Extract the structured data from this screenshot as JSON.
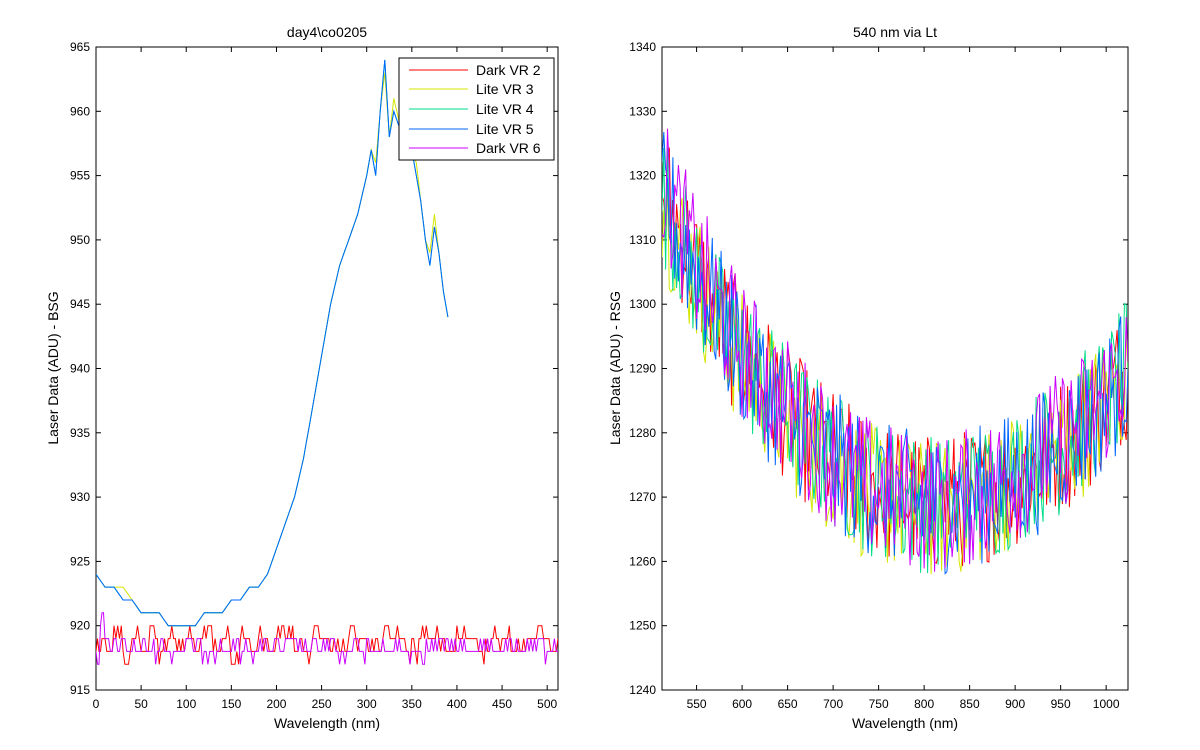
{
  "chart_data": [
    {
      "type": "line",
      "title": "day4\\co0205",
      "xlabel": "Wavelength (nm)",
      "ylabel": "Laser Data (ADU) - BSG",
      "xlim": [
        0,
        512
      ],
      "ylim": [
        915,
        965
      ],
      "xticks": [
        0,
        50,
        100,
        150,
        200,
        250,
        300,
        350,
        400,
        450,
        500
      ],
      "yticks": [
        915,
        920,
        925,
        930,
        935,
        940,
        945,
        950,
        955,
        960,
        965
      ],
      "grid": false,
      "legend": "top-right",
      "series": [
        {
          "name": "Dark VR 2",
          "color": "#ff0000",
          "x": [
            0,
            5,
            10,
            20,
            30,
            40,
            50,
            60,
            70,
            80,
            90,
            100,
            110,
            120,
            130,
            140,
            150,
            160,
            170,
            180,
            190,
            200,
            220,
            240,
            260,
            280,
            300,
            320,
            340,
            360,
            380,
            400,
            420,
            440,
            460,
            480,
            500,
            512
          ],
          "y": [
            918,
            919,
            918,
            919,
            917,
            919,
            918,
            919,
            918,
            919,
            918,
            919,
            918,
            919,
            918,
            919,
            917,
            919,
            918,
            919,
            918,
            919,
            918,
            919,
            918,
            919,
            918,
            919,
            918,
            919,
            918,
            919,
            918,
            919,
            918,
            919,
            918,
            919
          ]
        },
        {
          "name": "Lite VR 3",
          "color": "#d4e600",
          "x": [
            0,
            10,
            20,
            30,
            40,
            50,
            60,
            70,
            80,
            90,
            100,
            110,
            120,
            130,
            140,
            150,
            160,
            170,
            180,
            190,
            200,
            210,
            220,
            230,
            240,
            250,
            260,
            270,
            280,
            290,
            300,
            305,
            310,
            315,
            320,
            325,
            330,
            340,
            345,
            350,
            355,
            360,
            365,
            370,
            375,
            380,
            385,
            390
          ],
          "y": [
            924,
            923,
            923,
            923,
            922,
            921,
            921,
            921,
            920,
            920,
            920,
            920,
            921,
            921,
            921,
            922,
            922,
            923,
            923,
            924,
            926,
            928,
            930,
            933,
            937,
            941,
            945,
            948,
            950,
            952,
            955,
            957,
            956,
            960,
            963,
            958,
            961,
            958,
            960,
            957,
            956,
            953,
            950,
            949,
            952,
            949,
            946,
            944
          ]
        },
        {
          "name": "Lite VR 4",
          "color": "#00dd88",
          "x": [
            0,
            10,
            20,
            30,
            40,
            50,
            60,
            70,
            80,
            90,
            100,
            110,
            120,
            130,
            140,
            150,
            160,
            170,
            180,
            190,
            200,
            210,
            220,
            230,
            240,
            250,
            260,
            270,
            280,
            290,
            300,
            305,
            310,
            315,
            320,
            325,
            330,
            340,
            345,
            350,
            355,
            360,
            365,
            370,
            375,
            380,
            385,
            390
          ],
          "y": [
            924,
            923,
            923,
            922,
            922,
            921,
            921,
            921,
            920,
            920,
            920,
            920,
            921,
            921,
            921,
            922,
            922,
            923,
            923,
            924,
            926,
            928,
            930,
            933,
            937,
            941,
            945,
            948,
            950,
            952,
            955,
            957,
            955,
            960,
            964,
            958,
            960,
            958,
            960,
            957,
            955,
            953,
            950,
            948,
            951,
            949,
            946,
            944
          ]
        },
        {
          "name": "Lite VR 5",
          "color": "#0066ff",
          "x": [
            0,
            10,
            20,
            30,
            40,
            50,
            60,
            70,
            80,
            90,
            100,
            110,
            120,
            130,
            140,
            150,
            160,
            170,
            180,
            190,
            200,
            210,
            220,
            230,
            240,
            250,
            260,
            270,
            280,
            290,
            300,
            305,
            310,
            315,
            320,
            325,
            330,
            340,
            345,
            350,
            355,
            360,
            365,
            370,
            375,
            380,
            385,
            390
          ],
          "y": [
            924,
            923,
            923,
            922,
            922,
            921,
            921,
            921,
            920,
            920,
            920,
            920,
            921,
            921,
            921,
            922,
            922,
            923,
            923,
            924,
            926,
            928,
            930,
            933,
            937,
            941,
            945,
            948,
            950,
            952,
            955,
            957,
            955,
            960,
            964,
            958,
            960,
            958,
            960,
            957,
            955,
            953,
            950,
            948,
            951,
            949,
            946,
            944
          ]
        },
        {
          "name": "Dark VR 6",
          "color": "#cc00ff",
          "x": [
            0,
            5,
            10,
            20,
            40,
            60,
            80,
            100,
            120,
            140,
            160,
            180,
            200,
            220,
            240,
            260,
            270,
            280,
            300,
            320,
            340,
            360,
            380,
            400,
            420,
            440,
            460,
            480,
            500,
            512
          ],
          "y": [
            917,
            920,
            918,
            918,
            918,
            918,
            918,
            918,
            918,
            918,
            918,
            918,
            918,
            918,
            918,
            918,
            917,
            918,
            918,
            918,
            918,
            918,
            918,
            918,
            918,
            918,
            918,
            918,
            918,
            918
          ]
        }
      ]
    },
    {
      "type": "line",
      "title": "540 nm via Lt",
      "xlabel": "Wavelength (nm)",
      "ylabel": "Laser Data (ADU) - RSG",
      "xlim": [
        512,
        1024
      ],
      "ylim": [
        1240,
        1340
      ],
      "xticks": [
        550,
        600,
        650,
        700,
        750,
        800,
        850,
        900,
        950,
        1000
      ],
      "yticks": [
        1240,
        1250,
        1260,
        1270,
        1280,
        1290,
        1300,
        1310,
        1320,
        1330,
        1340
      ],
      "grid": false,
      "series": [
        {
          "color": "#ff0000",
          "x": [
            512,
            530,
            550,
            575,
            600,
            625,
            650,
            675,
            700,
            725,
            750,
            775,
            800,
            825,
            850,
            875,
            900,
            925,
            950,
            975,
            1000,
            1024
          ],
          "y": [
            1318,
            1312,
            1305,
            1298,
            1292,
            1288,
            1283,
            1279,
            1276,
            1273,
            1271,
            1270,
            1269,
            1269,
            1270,
            1271,
            1273,
            1275,
            1278,
            1281,
            1285,
            1290
          ]
        },
        {
          "color": "#d4e600",
          "x": [
            512,
            530,
            550,
            575,
            600,
            625,
            650,
            675,
            700,
            725,
            750,
            775,
            800,
            825,
            850,
            875,
            900,
            925,
            950,
            975,
            1000,
            1024
          ],
          "y": [
            1316,
            1310,
            1304,
            1297,
            1291,
            1287,
            1282,
            1278,
            1275,
            1272,
            1270,
            1269,
            1268,
            1268,
            1269,
            1271,
            1273,
            1275,
            1278,
            1281,
            1285,
            1289
          ]
        },
        {
          "color": "#00dd88",
          "x": [
            512,
            530,
            550,
            575,
            600,
            625,
            650,
            675,
            700,
            725,
            750,
            775,
            800,
            825,
            850,
            875,
            900,
            925,
            950,
            975,
            1000,
            1024
          ],
          "y": [
            1317,
            1311,
            1304,
            1297,
            1292,
            1287,
            1283,
            1279,
            1276,
            1273,
            1271,
            1270,
            1269,
            1269,
            1270,
            1271,
            1273,
            1276,
            1278,
            1282,
            1285,
            1290
          ]
        },
        {
          "color": "#0066ff",
          "x": [
            512,
            530,
            550,
            575,
            600,
            625,
            650,
            675,
            700,
            725,
            750,
            775,
            800,
            825,
            850,
            875,
            900,
            925,
            950,
            975,
            1000,
            1024
          ],
          "y": [
            1317,
            1311,
            1305,
            1298,
            1292,
            1287,
            1283,
            1279,
            1276,
            1273,
            1271,
            1270,
            1269,
            1269,
            1270,
            1271,
            1273,
            1275,
            1278,
            1281,
            1285,
            1290
          ]
        },
        {
          "color": "#cc00ff",
          "x": [
            512,
            530,
            550,
            575,
            600,
            625,
            650,
            675,
            700,
            725,
            750,
            775,
            800,
            825,
            850,
            875,
            900,
            925,
            950,
            975,
            1000,
            1024
          ],
          "y": [
            1319,
            1313,
            1306,
            1299,
            1293,
            1288,
            1284,
            1280,
            1276,
            1273,
            1271,
            1270,
            1269,
            1269,
            1270,
            1272,
            1274,
            1276,
            1279,
            1282,
            1286,
            1291
          ]
        }
      ]
    }
  ]
}
